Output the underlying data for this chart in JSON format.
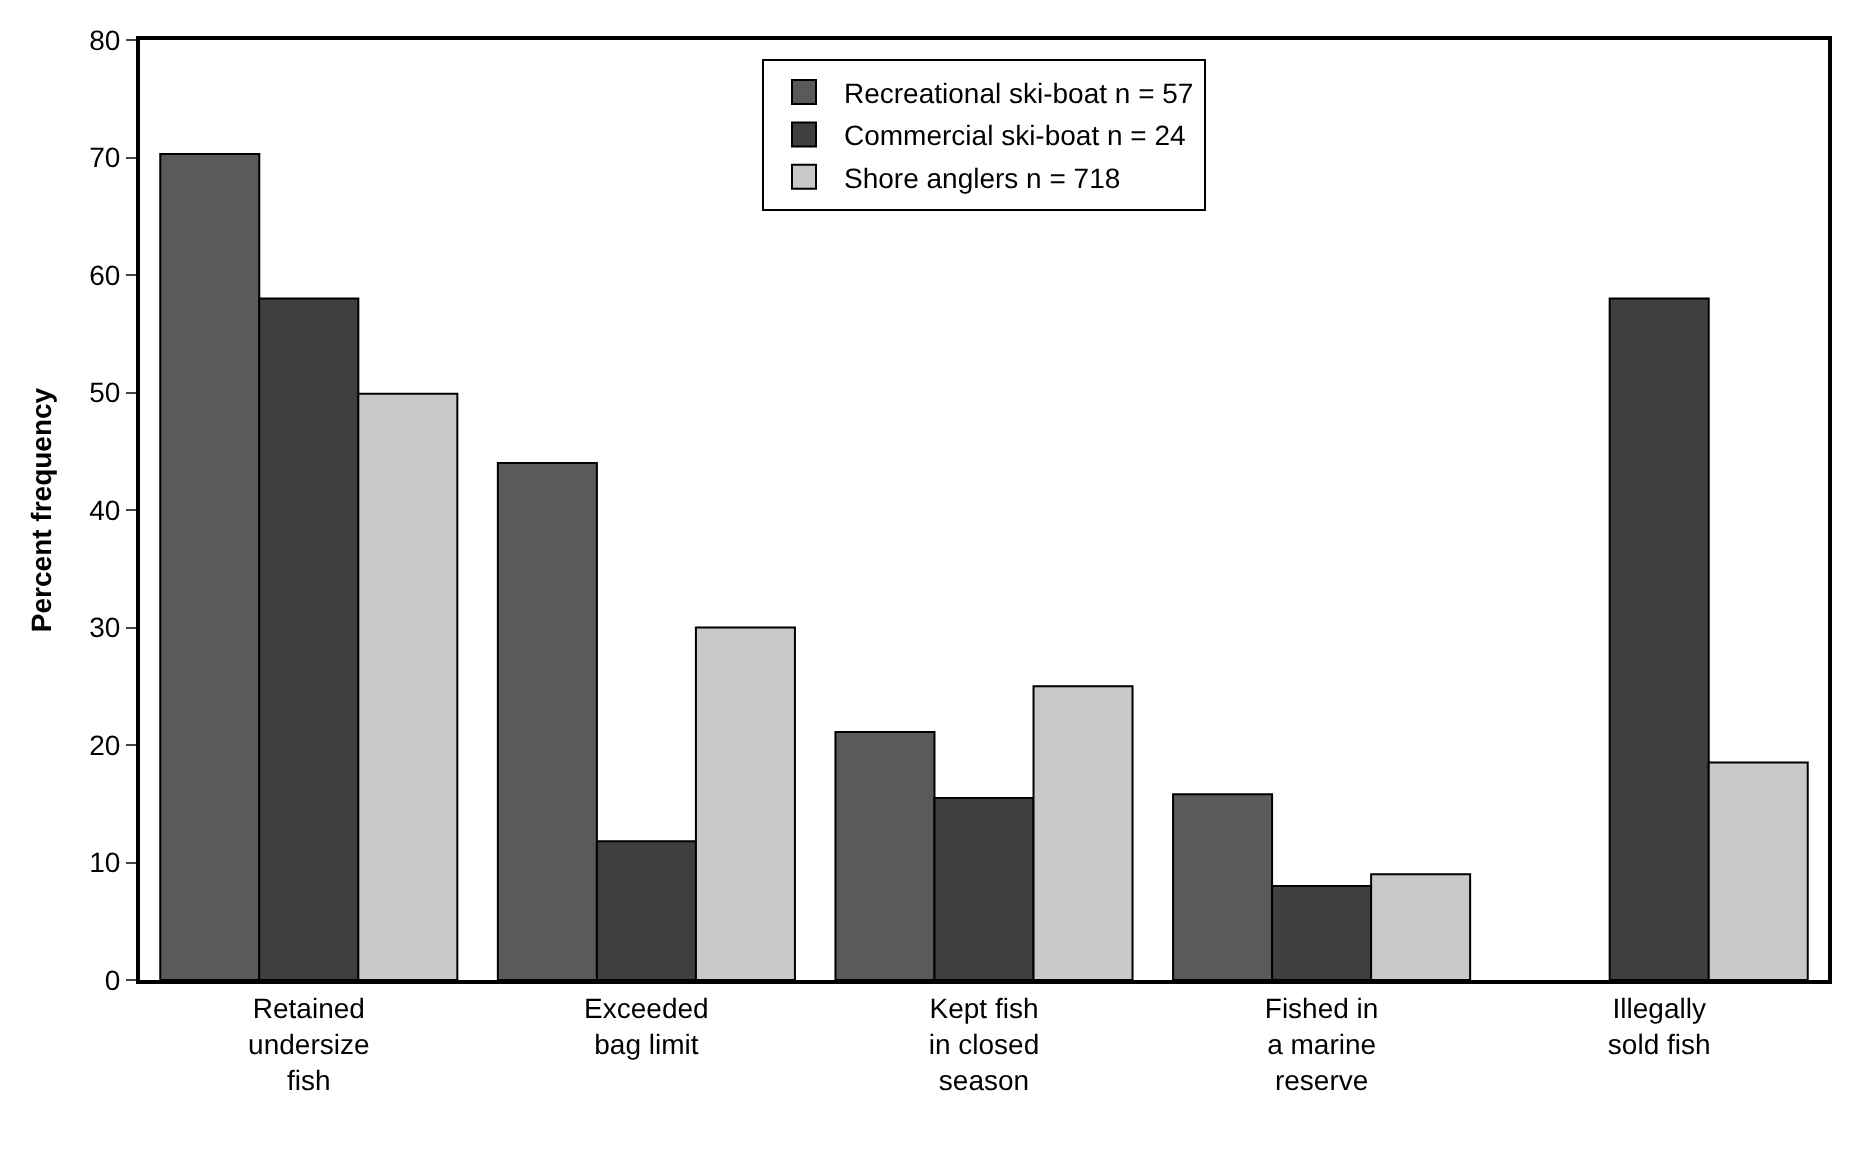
{
  "chart_data": {
    "type": "bar",
    "ylabel": "Percent frequency",
    "categories": [
      "Retained undersize fish",
      "Exceeded bag limit",
      "Kept fish in closed season",
      "Fished in a marine reserve",
      "Illegally sold fish"
    ],
    "series": [
      {
        "name": "Recreational ski-boat n = 57",
        "color": "#5a5a5a",
        "values": [
          70.3,
          44,
          21.1,
          15.8,
          null
        ]
      },
      {
        "name": "Commercial ski-boat n = 24",
        "color": "#3f3f3f",
        "values": [
          58,
          11.8,
          15.5,
          8,
          58
        ]
      },
      {
        "name": "Shore anglers n = 718",
        "color": "#c8c8c8",
        "values": [
          49.9,
          30,
          25,
          9,
          18.5
        ]
      }
    ],
    "ylim": [
      0,
      80
    ],
    "yticks": [
      0,
      10,
      20,
      30,
      40,
      50,
      60,
      70,
      80
    ],
    "grid": false,
    "legend": "top"
  }
}
